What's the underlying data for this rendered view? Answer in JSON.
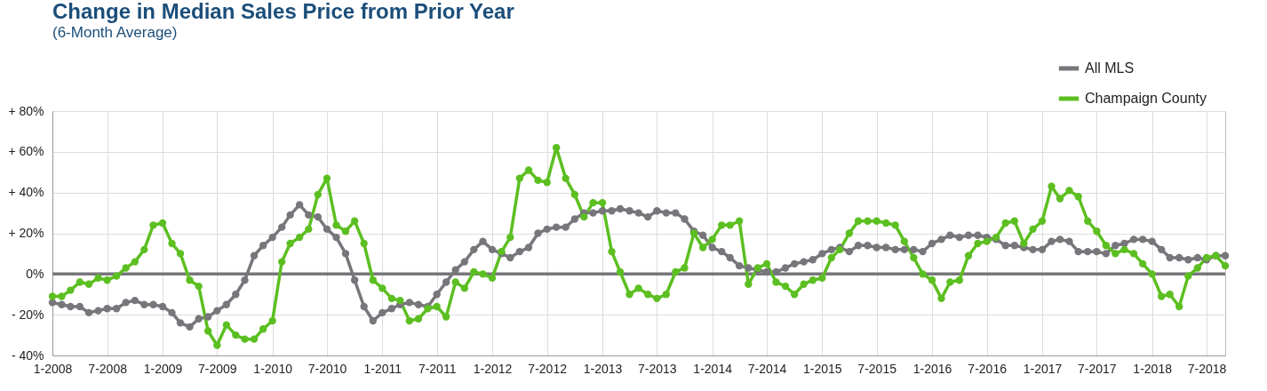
{
  "chart_data": {
    "type": "line",
    "title": "Change in Median Sales Price from Prior Year",
    "subtitle": "(6-Month Average)",
    "x": [
      "2008-01",
      "2008-02",
      "2008-03",
      "2008-04",
      "2008-05",
      "2008-06",
      "2008-07",
      "2008-08",
      "2008-09",
      "2008-10",
      "2008-11",
      "2008-12",
      "2009-01",
      "2009-02",
      "2009-03",
      "2009-04",
      "2009-05",
      "2009-06",
      "2009-07",
      "2009-08",
      "2009-09",
      "2009-10",
      "2009-11",
      "2009-12",
      "2010-01",
      "2010-02",
      "2010-03",
      "2010-04",
      "2010-05",
      "2010-06",
      "2010-07",
      "2010-08",
      "2010-09",
      "2010-10",
      "2010-11",
      "2010-12",
      "2011-01",
      "2011-02",
      "2011-03",
      "2011-04",
      "2011-05",
      "2011-06",
      "2011-07",
      "2011-08",
      "2011-09",
      "2011-10",
      "2011-11",
      "2011-12",
      "2012-01",
      "2012-02",
      "2012-03",
      "2012-04",
      "2012-05",
      "2012-06",
      "2012-07",
      "2012-08",
      "2012-09",
      "2012-10",
      "2012-11",
      "2012-12",
      "2013-01",
      "2013-02",
      "2013-03",
      "2013-04",
      "2013-05",
      "2013-06",
      "2013-07",
      "2013-08",
      "2013-09",
      "2013-10",
      "2013-11",
      "2013-12",
      "2014-01",
      "2014-02",
      "2014-03",
      "2014-04",
      "2014-05",
      "2014-06",
      "2014-07",
      "2014-08",
      "2014-09",
      "2014-10",
      "2014-11",
      "2014-12",
      "2015-01",
      "2015-02",
      "2015-03",
      "2015-04",
      "2015-05",
      "2015-06",
      "2015-07",
      "2015-08",
      "2015-09",
      "2015-10",
      "2015-11",
      "2015-12",
      "2016-01",
      "2016-02",
      "2016-03",
      "2016-04",
      "2016-05",
      "2016-06",
      "2016-07",
      "2016-08",
      "2016-09",
      "2016-10",
      "2016-11",
      "2016-12",
      "2017-01",
      "2017-02",
      "2017-03",
      "2017-04",
      "2017-05",
      "2017-06",
      "2017-07",
      "2017-08",
      "2017-09",
      "2017-10",
      "2017-11",
      "2017-12",
      "2018-01",
      "2018-02",
      "2018-03",
      "2018-04",
      "2018-05",
      "2018-06",
      "2018-07",
      "2018-08",
      "2018-09"
    ],
    "series": [
      {
        "name": "All MLS",
        "color": "#77767b",
        "values": [
          -14,
          -15,
          -16,
          -16,
          -19,
          -18,
          -17,
          -17,
          -14,
          -13,
          -15,
          -15,
          -16,
          -19,
          -24,
          -26,
          -22,
          -21,
          -18,
          -15,
          -10,
          -3,
          9,
          14,
          18,
          23,
          29,
          34,
          29,
          28,
          22,
          18,
          10,
          -3,
          -16,
          -23,
          -19,
          -17,
          -15,
          -14,
          -15,
          -16,
          -10,
          -4,
          2,
          6,
          12,
          16,
          12,
          10,
          8,
          11,
          13,
          20,
          22,
          23,
          23,
          27,
          30,
          30,
          31,
          31,
          32,
          31,
          30,
          28,
          31,
          30,
          30,
          27,
          21,
          19,
          13,
          11,
          8,
          4,
          3,
          2,
          1,
          1,
          3,
          5,
          6,
          7,
          10,
          12,
          13,
          11,
          14,
          14,
          13,
          13,
          12,
          12,
          12,
          11,
          15,
          17,
          19,
          18,
          19,
          19,
          18,
          17,
          14,
          14,
          13,
          12,
          12,
          16,
          17,
          16,
          11,
          11,
          11,
          10,
          14,
          15,
          17,
          17,
          16,
          12,
          8,
          8,
          7,
          8,
          7,
          9,
          9
        ]
      },
      {
        "name": "Champaign County",
        "color": "#5cbf21",
        "values": [
          -11,
          -11,
          -8,
          -4,
          -5,
          -2,
          -3,
          -1,
          3,
          6,
          12,
          24,
          25,
          15,
          10,
          -3,
          -6,
          -28,
          -35,
          -25,
          -30,
          -32,
          -32,
          -27,
          -23,
          6,
          15,
          18,
          22,
          39,
          47,
          24,
          21,
          26,
          15,
          -3,
          -7,
          -12,
          -13,
          -23,
          -22,
          -17,
          -16,
          -21,
          -4,
          -7,
          1,
          0,
          -2,
          11,
          18,
          47,
          51,
          46,
          45,
          62,
          47,
          39,
          28,
          35,
          35,
          11,
          1,
          -10,
          -7,
          -10,
          -12,
          -10,
          1,
          3,
          20,
          13,
          17,
          24,
          24,
          26,
          -5,
          3,
          5,
          -4,
          -6,
          -10,
          -5,
          -3,
          -2,
          8,
          12,
          20,
          26,
          26,
          26,
          25,
          24,
          16,
          8,
          0,
          -3,
          -12,
          -4,
          -3,
          9,
          15,
          16,
          18,
          25,
          26,
          15,
          22,
          26,
          43,
          37,
          41,
          38,
          26,
          21,
          14,
          10,
          12,
          10,
          5,
          0,
          -11,
          -10,
          -16,
          -1,
          3,
          8,
          9,
          4
        ]
      }
    ],
    "xlim": [
      "2008-01",
      "2018-09"
    ],
    "xticks": [
      {
        "value": "2008-01",
        "label": "1-2008"
      },
      {
        "value": "2008-07",
        "label": "7-2008"
      },
      {
        "value": "2009-01",
        "label": "1-2009"
      },
      {
        "value": "2009-07",
        "label": "7-2009"
      },
      {
        "value": "2010-01",
        "label": "1-2010"
      },
      {
        "value": "2010-07",
        "label": "7-2010"
      },
      {
        "value": "2011-01",
        "label": "1-2011"
      },
      {
        "value": "2011-07",
        "label": "7-2011"
      },
      {
        "value": "2012-01",
        "label": "1-2012"
      },
      {
        "value": "2012-07",
        "label": "7-2012"
      },
      {
        "value": "2013-01",
        "label": "1-2013"
      },
      {
        "value": "2013-07",
        "label": "7-2013"
      },
      {
        "value": "2014-01",
        "label": "1-2014"
      },
      {
        "value": "2014-07",
        "label": "7-2014"
      },
      {
        "value": "2015-01",
        "label": "1-2015"
      },
      {
        "value": "2015-07",
        "label": "7-2015"
      },
      {
        "value": "2016-01",
        "label": "1-2016"
      },
      {
        "value": "2016-07",
        "label": "7-2016"
      },
      {
        "value": "2017-01",
        "label": "1-2017"
      },
      {
        "value": "2017-07",
        "label": "7-2017"
      },
      {
        "value": "2018-01",
        "label": "1-2018"
      },
      {
        "value": "2018-07",
        "label": "7-2018"
      }
    ],
    "ylim": [
      -40,
      80
    ],
    "yticks": [
      {
        "value": -40,
        "label": "- 40%"
      },
      {
        "value": -20,
        "label": "- 20%"
      },
      {
        "value": 0,
        "label": "0%"
      },
      {
        "value": 20,
        "label": "+ 20%"
      },
      {
        "value": 40,
        "label": "+ 40%"
      },
      {
        "value": 60,
        "label": "+ 60%"
      },
      {
        "value": 80,
        "label": "+ 80%"
      }
    ],
    "ref_lines": [
      {
        "axis": "y",
        "value": 0,
        "color": "#77767b"
      }
    ],
    "grid": true,
    "legend": "top right",
    "marker": "circle",
    "line_style": "solid"
  }
}
